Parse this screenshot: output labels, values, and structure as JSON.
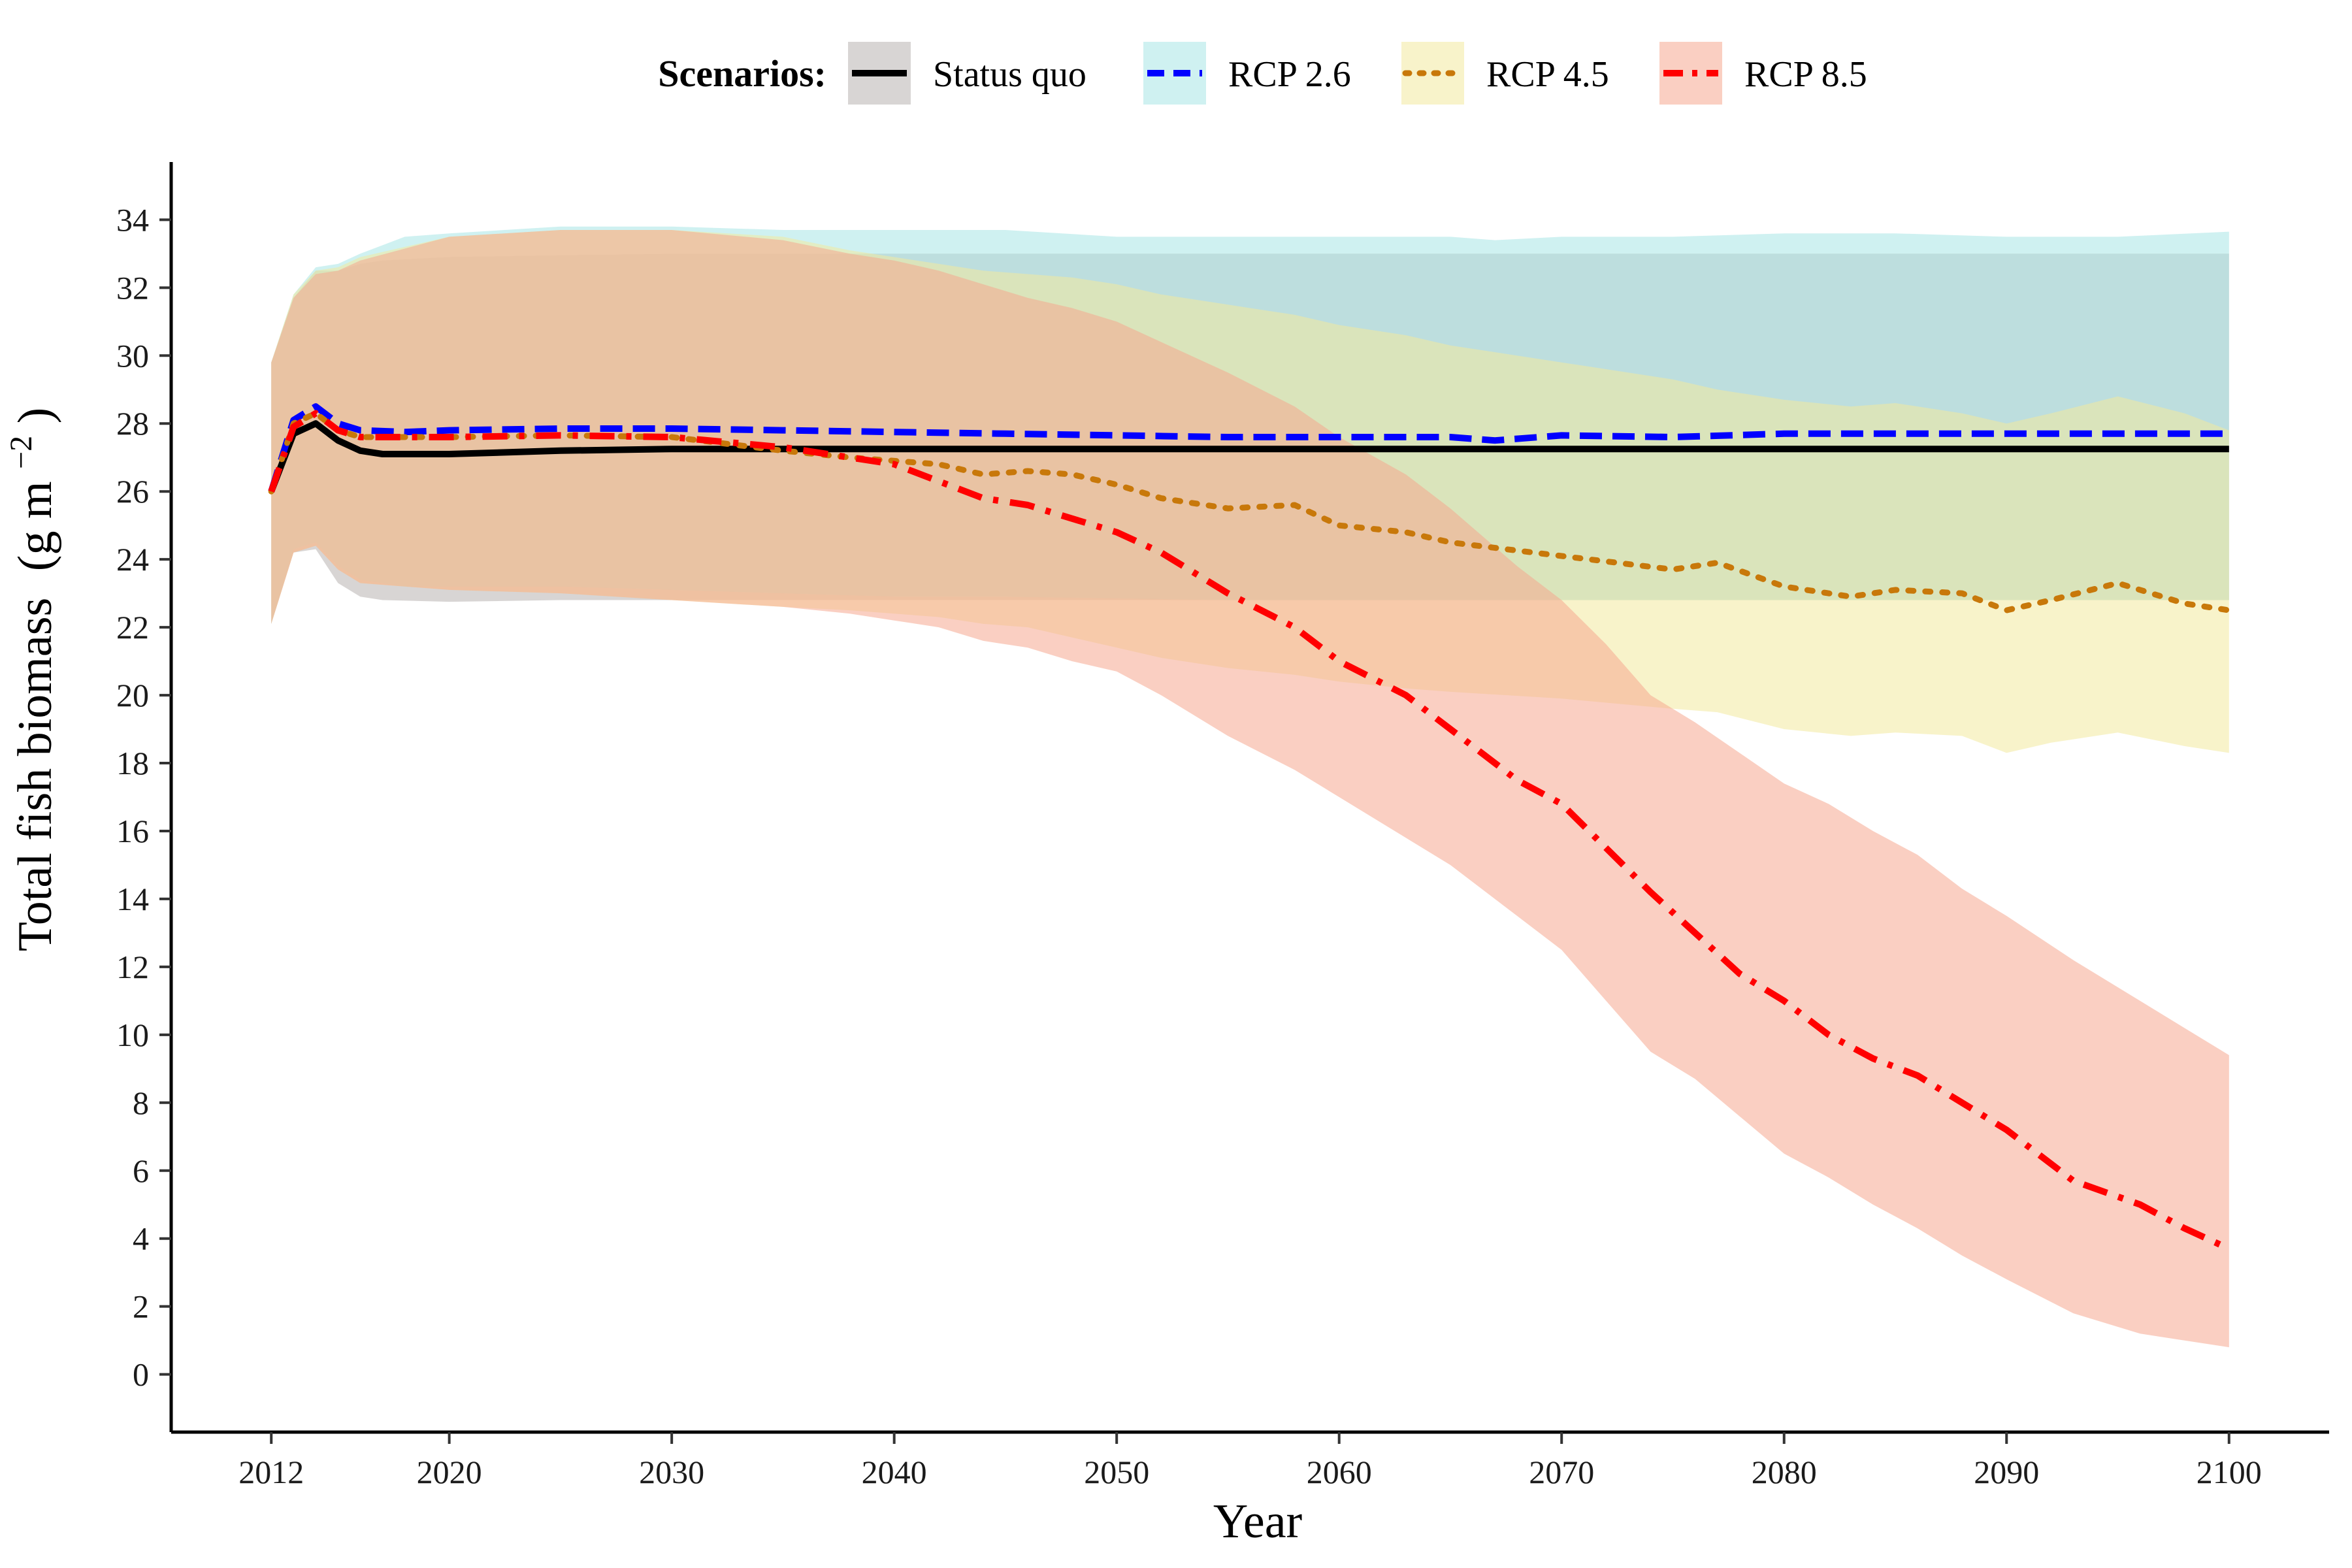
{
  "chart_data": {
    "type": "line",
    "title": "",
    "xlabel": "Year",
    "ylabel": "Total fish biomass",
    "ylabel_unit": "(g m",
    "ylabel_unit_exp": "−2",
    "ylabel_unit_close": ")",
    "xlim": [
      2007.5,
      2104.5
    ],
    "ylim": [
      -1.7,
      35.7
    ],
    "x_ticks": [
      2012,
      2020,
      2030,
      2040,
      2050,
      2060,
      2070,
      2080,
      2090,
      2100
    ],
    "y_ticks": [
      0,
      2,
      4,
      6,
      8,
      10,
      12,
      14,
      16,
      18,
      20,
      22,
      24,
      26,
      28,
      30,
      32,
      34
    ],
    "legend_title": "Scenarios:",
    "legend_position": "top",
    "grid": false,
    "series": [
      {
        "name": "Status quo",
        "color": "#000000",
        "band_color": "#b8b2b0",
        "dash": "solid",
        "x": [
          2012,
          2013,
          2014,
          2015,
          2016,
          2017,
          2020,
          2025,
          2030,
          2040,
          2050,
          2060,
          2070,
          2080,
          2090,
          2100
        ],
        "y": [
          26.0,
          27.7,
          28.0,
          27.5,
          27.2,
          27.1,
          27.1,
          27.2,
          27.25,
          27.25,
          27.25,
          27.25,
          27.25,
          27.25,
          27.25,
          27.25
        ],
        "upper": [
          29.8,
          31.7,
          32.5,
          32.5,
          32.7,
          32.8,
          32.9,
          32.95,
          33.0,
          33.0,
          33.0,
          33.0,
          33.0,
          33.0,
          33.0,
          33.0
        ],
        "lower": [
          22.1,
          24.2,
          24.3,
          23.3,
          22.9,
          22.8,
          22.75,
          22.8,
          22.8,
          22.8,
          22.8,
          22.8,
          22.8,
          22.8,
          22.8,
          22.8
        ]
      },
      {
        "name": "RCP 2.6",
        "color": "#0000ff",
        "band_color": "#a8e6e6",
        "dash": "dashed",
        "x": [
          2012,
          2013,
          2014,
          2015,
          2016,
          2018,
          2020,
          2025,
          2030,
          2035,
          2040,
          2045,
          2050,
          2055,
          2060,
          2065,
          2067,
          2070,
          2075,
          2080,
          2085,
          2090,
          2095,
          2100
        ],
        "y": [
          26.0,
          28.1,
          28.5,
          28.0,
          27.8,
          27.75,
          27.8,
          27.85,
          27.85,
          27.8,
          27.75,
          27.7,
          27.65,
          27.6,
          27.6,
          27.6,
          27.5,
          27.65,
          27.6,
          27.7,
          27.7,
          27.7,
          27.7,
          27.7
        ],
        "upper": [
          29.8,
          31.8,
          32.6,
          32.7,
          33.0,
          33.5,
          33.6,
          33.8,
          33.8,
          33.7,
          33.7,
          33.7,
          33.5,
          33.5,
          33.5,
          33.5,
          33.4,
          33.5,
          33.5,
          33.6,
          33.6,
          33.5,
          33.5,
          33.65
        ],
        "lower": [
          22.1,
          24.3,
          24.5,
          23.8,
          23.4,
          23.2,
          23.2,
          23.2,
          23.1,
          23.0,
          22.9,
          22.9,
          22.85,
          22.8,
          22.8,
          22.8,
          22.8,
          22.8,
          22.8,
          22.8,
          22.8,
          22.8,
          22.8,
          22.8
        ]
      },
      {
        "name": "RCP 4.5",
        "color": "#c8780a",
        "band_color": "#f2ea9e",
        "dash": "dotted",
        "x": [
          2012,
          2013,
          2014,
          2015,
          2016,
          2020,
          2025,
          2030,
          2035,
          2038,
          2040,
          2042,
          2044,
          2046,
          2048,
          2050,
          2052,
          2055,
          2058,
          2060,
          2063,
          2065,
          2070,
          2075,
          2077,
          2080,
          2083,
          2085,
          2088,
          2090,
          2092,
          2095,
          2098,
          2100
        ],
        "y": [
          26.0,
          28.0,
          28.3,
          27.8,
          27.6,
          27.6,
          27.65,
          27.6,
          27.2,
          27.0,
          26.9,
          26.8,
          26.5,
          26.6,
          26.5,
          26.2,
          25.8,
          25.5,
          25.6,
          25.0,
          24.8,
          24.5,
          24.1,
          23.7,
          23.9,
          23.2,
          22.9,
          23.1,
          23.0,
          22.5,
          22.8,
          23.3,
          22.7,
          22.5
        ],
        "upper": [
          29.8,
          31.8,
          32.5,
          32.6,
          32.9,
          33.5,
          33.7,
          33.7,
          33.5,
          33.1,
          32.9,
          32.7,
          32.5,
          32.4,
          32.3,
          32.1,
          31.8,
          31.5,
          31.2,
          30.9,
          30.6,
          30.3,
          29.8,
          29.3,
          29.0,
          28.7,
          28.5,
          28.6,
          28.3,
          28.0,
          28.3,
          28.8,
          28.3,
          27.8
        ],
        "lower": [
          22.1,
          24.2,
          24.4,
          23.7,
          23.3,
          23.1,
          23.0,
          22.8,
          22.6,
          22.5,
          22.4,
          22.3,
          22.1,
          22.0,
          21.7,
          21.4,
          21.1,
          20.8,
          20.6,
          20.4,
          20.2,
          20.1,
          19.9,
          19.6,
          19.5,
          19.0,
          18.8,
          18.9,
          18.8,
          18.3,
          18.6,
          18.9,
          18.5,
          18.3
        ]
      },
      {
        "name": "RCP 8.5",
        "color": "#ff0000",
        "band_color": "#f5a890",
        "dash": "dashdot",
        "x": [
          2012,
          2013,
          2014,
          2015,
          2016,
          2020,
          2025,
          2030,
          2035,
          2038,
          2040,
          2042,
          2044,
          2046,
          2048,
          2050,
          2052,
          2055,
          2058,
          2060,
          2063,
          2065,
          2068,
          2070,
          2072,
          2074,
          2076,
          2078,
          2080,
          2082,
          2084,
          2086,
          2088,
          2090,
          2093,
          2096,
          2098,
          2100
        ],
        "y": [
          26.0,
          27.9,
          28.3,
          27.8,
          27.6,
          27.6,
          27.65,
          27.6,
          27.3,
          27.0,
          26.8,
          26.3,
          25.8,
          25.6,
          25.2,
          24.8,
          24.2,
          23.0,
          22.0,
          21.0,
          20.0,
          19.0,
          17.5,
          16.8,
          15.5,
          14.2,
          13.0,
          11.8,
          11.0,
          10.0,
          9.3,
          8.8,
          8.0,
          7.2,
          5.7,
          5.0,
          4.3,
          3.7
        ],
        "upper": [
          29.8,
          31.7,
          32.4,
          32.5,
          32.8,
          33.5,
          33.7,
          33.7,
          33.4,
          33.0,
          32.8,
          32.5,
          32.1,
          31.7,
          31.4,
          31.0,
          30.4,
          29.5,
          28.5,
          27.6,
          26.5,
          25.5,
          23.8,
          22.8,
          21.5,
          20.0,
          19.2,
          18.3,
          17.4,
          16.8,
          16.0,
          15.3,
          14.3,
          13.5,
          12.2,
          11.0,
          10.2,
          9.4
        ],
        "lower": [
          22.1,
          24.2,
          24.4,
          23.7,
          23.3,
          23.1,
          23.0,
          22.8,
          22.6,
          22.4,
          22.2,
          22.0,
          21.6,
          21.4,
          21.0,
          20.7,
          20.0,
          18.8,
          17.8,
          17.0,
          15.8,
          15.0,
          13.5,
          12.5,
          11.0,
          9.5,
          8.7,
          7.6,
          6.5,
          5.8,
          5.0,
          4.3,
          3.5,
          2.8,
          1.8,
          1.2,
          1.0,
          0.8
        ]
      }
    ]
  }
}
